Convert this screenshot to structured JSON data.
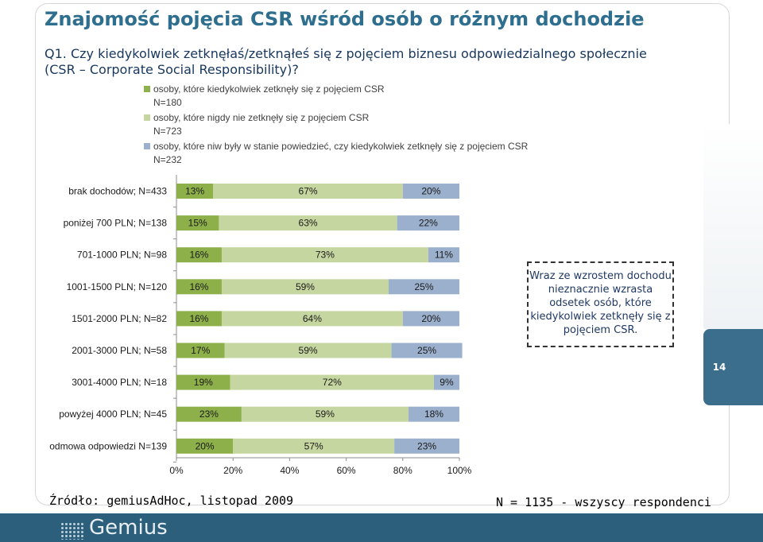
{
  "title": "Znajomość pojęcia CSR wśród osób o różnym dochodzie",
  "question": "Q1. Czy kiedykolwiek zetknęłaś/zetknąłeś się z pojęciem biznesu odpowiedzialnego społecznie (CSR – Corporate Social Responsibility)?",
  "callout": "Wraz ze wzrostem dochodu nieznacznie wzrasta odsetek osób, które kiedykolwiek zetknęły się z pojęciem CSR.",
  "page_number": "14",
  "source": "Źródło: gemiusAdHoc, listopad 2009",
  "respondents": "N = 1135 - wszyscy respondenci",
  "logo_text": "Gemius",
  "colors": {
    "series_1": "#8db04a",
    "series_2": "#c6d6a0",
    "series_3": "#9bb0cc",
    "title": "#2e6e8e",
    "footer": "#2c5f7c"
  },
  "chart_data": {
    "type": "bar",
    "orientation": "horizontal",
    "stacked": true,
    "percent": true,
    "categories": [
      "brak dochodów; N=433",
      "poniżej 700 PLN; N=138",
      "701-1000 PLN; N=98",
      "1001-1500 PLN; N=120",
      "1501-2000 PLN; N=82",
      "2001-3000 PLN; N=58",
      "3001-4000 PLN; N=18",
      "powyżej 4000 PLN; N=45",
      "odmowa  odpowiedzi N=139"
    ],
    "series": [
      {
        "name": "osoby, które kiedykolwiek zetknęły się z pojęciem CSR\nN=180",
        "values": [
          13,
          15,
          16,
          16,
          16,
          17,
          19,
          23,
          20
        ]
      },
      {
        "name": "osoby, które nigdy nie zetknęły się z pojęciem CSR\nN=723",
        "values": [
          67,
          63,
          73,
          59,
          64,
          59,
          72,
          59,
          57
        ]
      },
      {
        "name": "osoby, które niw były w stanie powiedzieć, czy kiedykolwiek zetknęły się z pojęciem CSR\nN=232",
        "values": [
          20,
          22,
          11,
          25,
          20,
          25,
          9,
          18,
          23
        ]
      }
    ],
    "xlim": [
      0,
      100
    ],
    "x_ticks": [
      "0%",
      "20%",
      "40%",
      "60%",
      "80%",
      "100%"
    ],
    "legend_position": "top",
    "grid": false
  }
}
